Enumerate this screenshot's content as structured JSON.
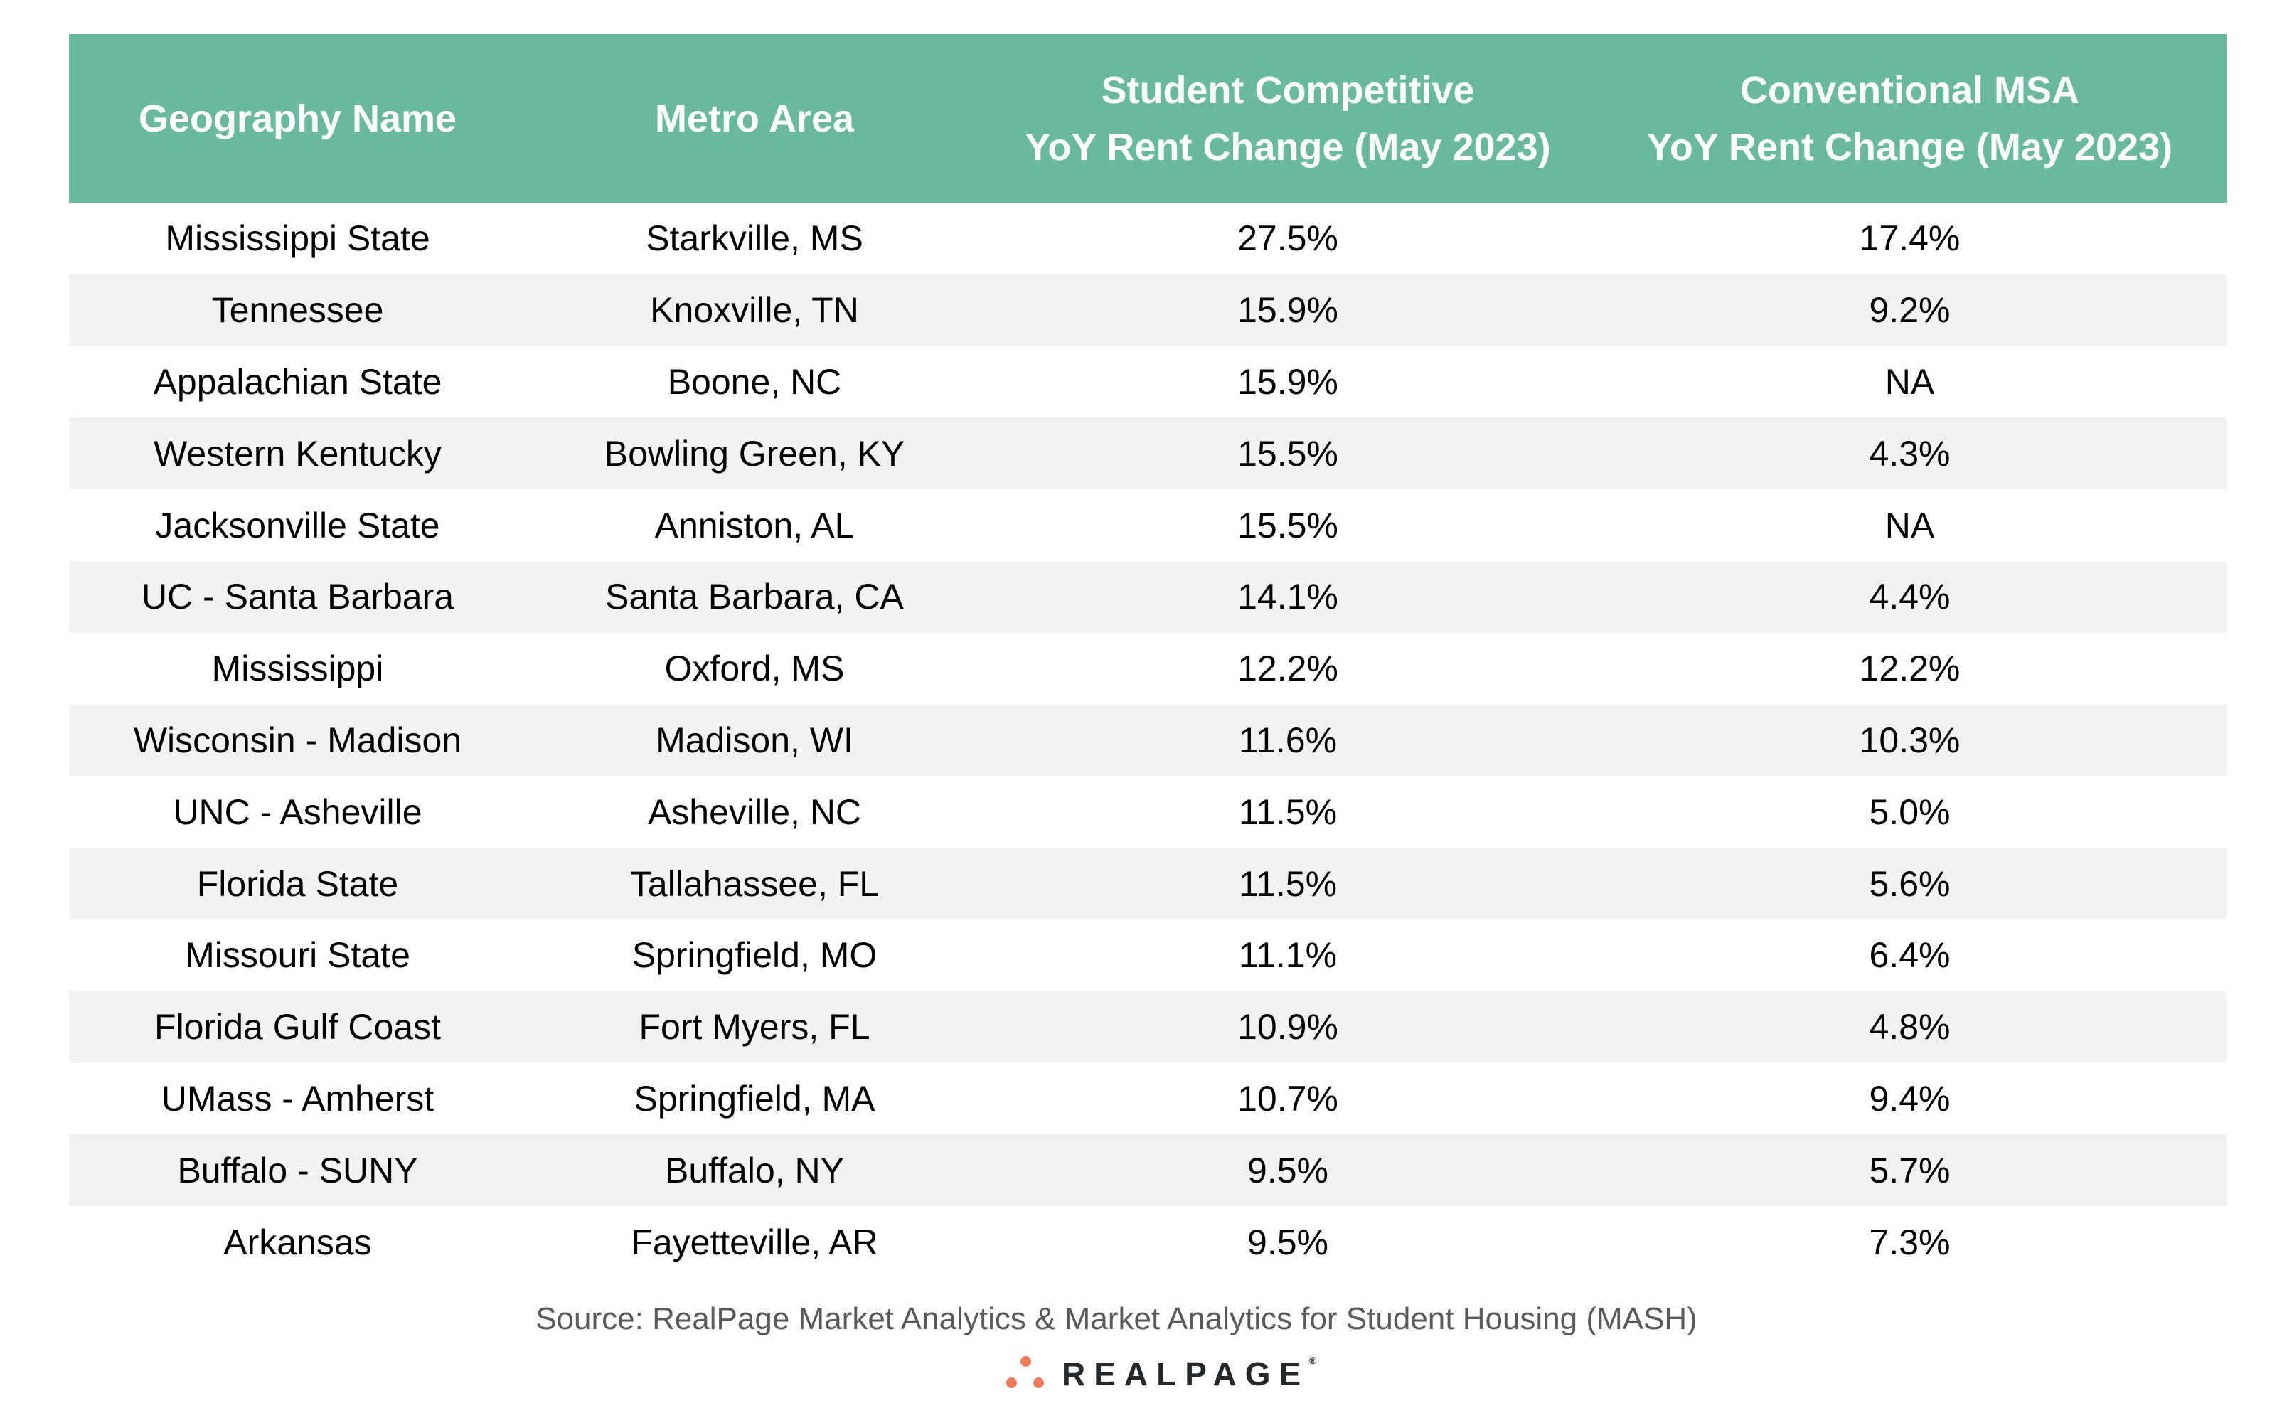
{
  "table": {
    "headers": [
      {
        "line1": "Geography Name",
        "line2": ""
      },
      {
        "line1": "Metro Area",
        "line2": ""
      },
      {
        "line1": "Student Competitive",
        "line2": "YoY Rent Change (May 2023)"
      },
      {
        "line1": "Conventional MSA",
        "line2": "YoY Rent Change (May 2023)"
      }
    ],
    "rows": [
      [
        "Mississippi State",
        "Starkville, MS",
        "27.5%",
        "17.4%"
      ],
      [
        "Tennessee",
        "Knoxville, TN",
        "15.9%",
        "9.2%"
      ],
      [
        "Appalachian State",
        "Boone, NC",
        "15.9%",
        "NA"
      ],
      [
        "Western Kentucky",
        "Bowling Green, KY",
        "15.5%",
        "4.3%"
      ],
      [
        "Jacksonville State",
        "Anniston, AL",
        "15.5%",
        "NA"
      ],
      [
        "UC - Santa Barbara",
        "Santa Barbara, CA",
        "14.1%",
        "4.4%"
      ],
      [
        "Mississippi",
        "Oxford, MS",
        "12.2%",
        "12.2%"
      ],
      [
        "Wisconsin - Madison",
        "Madison, WI",
        "11.6%",
        "10.3%"
      ],
      [
        "UNC - Asheville",
        "Asheville, NC",
        "11.5%",
        "5.0%"
      ],
      [
        "Florida State",
        "Tallahassee, FL",
        "11.5%",
        "5.6%"
      ],
      [
        "Missouri State",
        "Springfield, MO",
        "11.1%",
        "6.4%"
      ],
      [
        "Florida Gulf Coast",
        "Fort Myers, FL",
        "10.9%",
        "4.8%"
      ],
      [
        "UMass - Amherst",
        "Springfield, MA",
        "10.7%",
        "9.4%"
      ],
      [
        "Buffalo - SUNY",
        "Buffalo, NY",
        "9.5%",
        "5.7%"
      ],
      [
        "Arkansas",
        "Fayetteville, AR",
        "9.5%",
        "7.3%"
      ]
    ]
  },
  "source": "Source: RealPage Market Analytics & Market Analytics for Student Housing (MASH)",
  "logo": {
    "text": "REALPAGE",
    "mark": "®"
  },
  "colors": {
    "header": "#69B8A0",
    "stripe": "#F2F2F2",
    "logo_accent": "#EE7B5A"
  }
}
